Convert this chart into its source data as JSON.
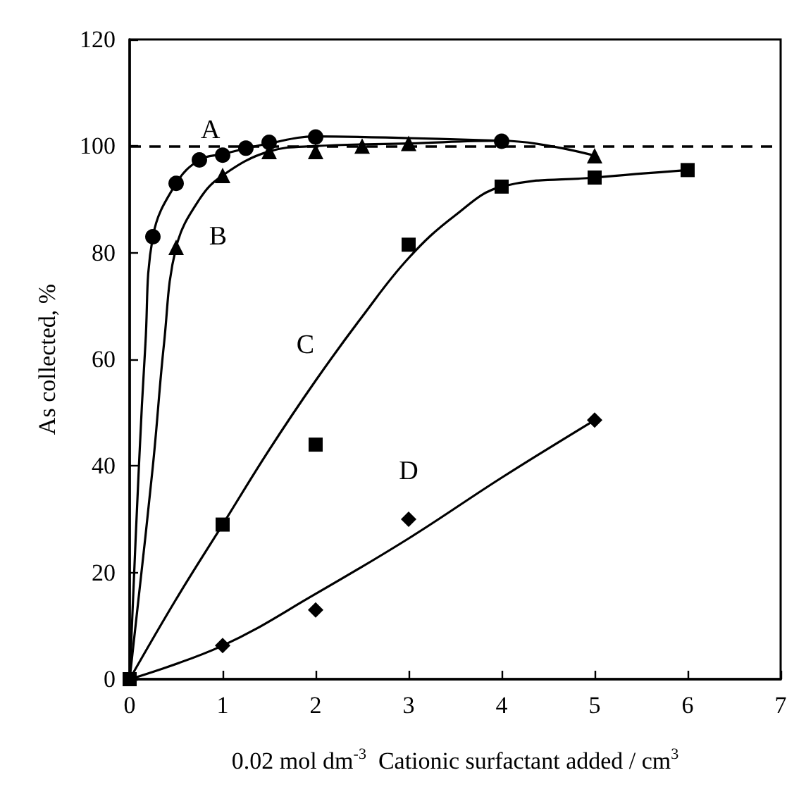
{
  "chart_data": {
    "type": "scatter",
    "xlabel": "0.02 mol dm$^{-3}$  Cationic surfactant added / cm$^{3}$",
    "ylabel": "As collected, %",
    "xlim": [
      0,
      7
    ],
    "xticks": [
      0,
      1,
      2,
      3,
      4,
      5,
      6,
      7
    ],
    "ylim": [
      0,
      120
    ],
    "yticks": [
      0,
      20,
      40,
      60,
      80,
      100,
      120
    ],
    "grid": false,
    "series": [
      {
        "type": "line",
        "marker": "none",
        "color": "#000000",
        "x": [
          0,
          0.1,
          0.17,
          0.25,
          0.5,
          0.75,
          1,
          1.5,
          2,
          3,
          4
        ],
        "values": [
          0,
          40,
          63,
          83,
          93,
          97.4,
          98.5,
          100.5,
          101.8,
          101.5,
          101
        ]
      },
      {
        "type": "line",
        "marker": "none",
        "color": "#000000",
        "x": [
          0,
          0.25,
          0.37,
          0.5,
          0.75,
          1,
          1.5,
          2,
          3,
          4,
          5
        ],
        "values": [
          0,
          40,
          63,
          81,
          90,
          94.5,
          99,
          100,
          100.5,
          101,
          98.2
        ]
      },
      {
        "type": "line",
        "marker": "none",
        "color": "#000000",
        "x": [
          0,
          0.5,
          1,
          1.5,
          2,
          2.5,
          3,
          3.5,
          4,
          5,
          6
        ],
        "values": [
          0,
          15,
          29,
          43,
          56,
          68,
          79,
          87,
          92.4,
          94.1,
          95.5
        ]
      },
      {
        "type": "line",
        "marker": "none",
        "color": "#000000",
        "x": [
          0,
          1,
          2,
          3,
          4,
          5
        ],
        "values": [
          0,
          6.3,
          16,
          26.4,
          37.8,
          48.6
        ]
      },
      {
        "marker": "circle",
        "color": "#000000",
        "x": [
          0.25,
          0.5,
          0.75,
          1,
          1.25,
          1.5,
          2,
          4
        ],
        "values": [
          83,
          93,
          97.4,
          98.3,
          99.6,
          100.7,
          101.7,
          100.9
        ]
      },
      {
        "marker": "triangle",
        "color": "#000000",
        "x": [
          0.5,
          1,
          1.5,
          2,
          2.5,
          3,
          5
        ],
        "values": [
          81,
          94.5,
          99,
          99,
          100,
          100.5,
          98.2
        ]
      },
      {
        "marker": "square",
        "color": "#000000",
        "x": [
          0,
          1,
          2,
          3,
          4,
          5,
          6
        ],
        "values": [
          0,
          29,
          44,
          81.5,
          92.4,
          94.1,
          95.5
        ]
      },
      {
        "marker": "diamond",
        "color": "#000000",
        "x": [
          1,
          2,
          3,
          5
        ],
        "values": [
          6.3,
          13,
          30,
          48.6
        ]
      }
    ],
    "ref_lines": [
      {
        "axis": "y",
        "value": 100,
        "color": "#000000",
        "line_style": "dashed"
      }
    ],
    "annotations": [
      "A",
      "B",
      "C",
      "D"
    ]
  }
}
